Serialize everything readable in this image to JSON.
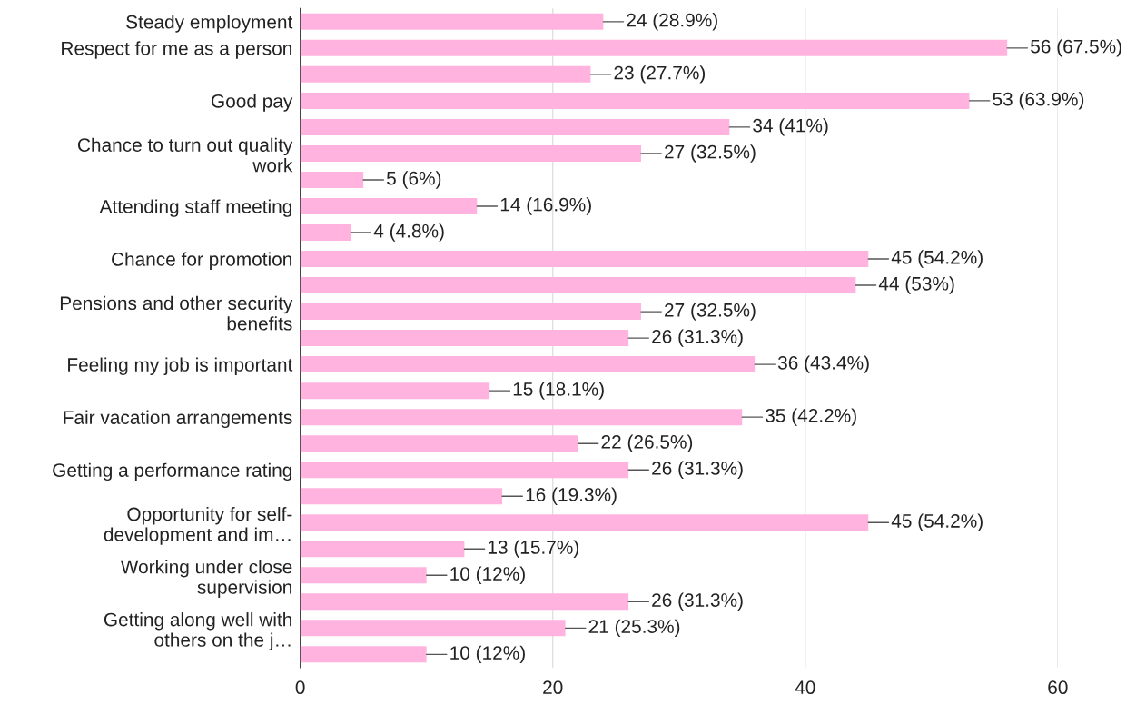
{
  "chart_data": {
    "type": "bar",
    "orientation": "horizontal",
    "categories": [
      "Steady employment",
      "Respect for me as a person",
      null,
      "Good pay",
      null,
      "Chance to turn out quality\nwork",
      null,
      "Attending staff meeting",
      null,
      "Chance for promotion",
      null,
      "Pensions and other security\nbenefits",
      null,
      "Feeling my job is important",
      null,
      "Fair vacation arrangements",
      null,
      "Getting a performance rating",
      null,
      "Opportunity for self-\ndevelopment and im…",
      null,
      "Working under close\nsupervision",
      null,
      "Getting along well with\nothers on the j…",
      null
    ],
    "values": [
      24,
      56,
      23,
      53,
      34,
      27,
      5,
      14,
      4,
      45,
      44,
      27,
      26,
      36,
      15,
      35,
      22,
      26,
      16,
      45,
      13,
      10,
      26,
      21,
      10
    ],
    "value_labels": [
      "24 (28.9%)",
      "56 (67.5%)",
      "23 (27.7%)",
      "53 (63.9%)",
      "34 (41%)",
      "27 (32.5%)",
      "5 (6%)",
      "14 (16.9%)",
      "4 (4.8%)",
      "45 (54.2%)",
      "44 (53%)",
      "27 (32.5%)",
      "26 (31.3%)",
      "36 (43.4%)",
      "15 (18.1%)",
      "35 (42.2%)",
      "22 (26.5%)",
      "26 (31.3%)",
      "16 (19.3%)",
      "45 (54.2%)",
      "13 (15.7%)",
      "10 (12%)",
      "26 (31.3%)",
      "21 (25.3%)",
      "10 (12%)"
    ],
    "color": "#ffb3de",
    "xlim": [
      0,
      60
    ],
    "xticks": [
      0,
      20,
      40,
      60
    ],
    "grid": "x",
    "legend": false
  }
}
